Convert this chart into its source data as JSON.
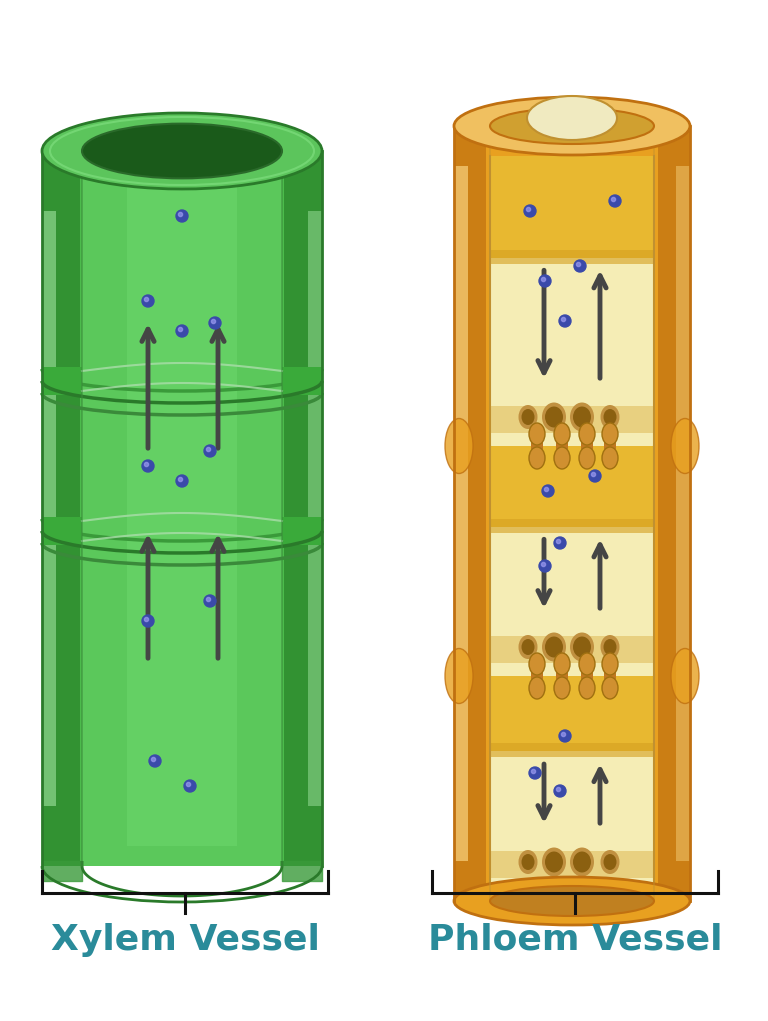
{
  "background_color": "#ffffff",
  "title_color": "#2A8B9A",
  "xylem_label": "Xylem Vessel",
  "phloem_label": "Phloem Vessel",
  "label_fontsize": 26,
  "dot_color": "#3A4AAA",
  "arrow_color": "#454545",
  "bracket_color": "#111111"
}
